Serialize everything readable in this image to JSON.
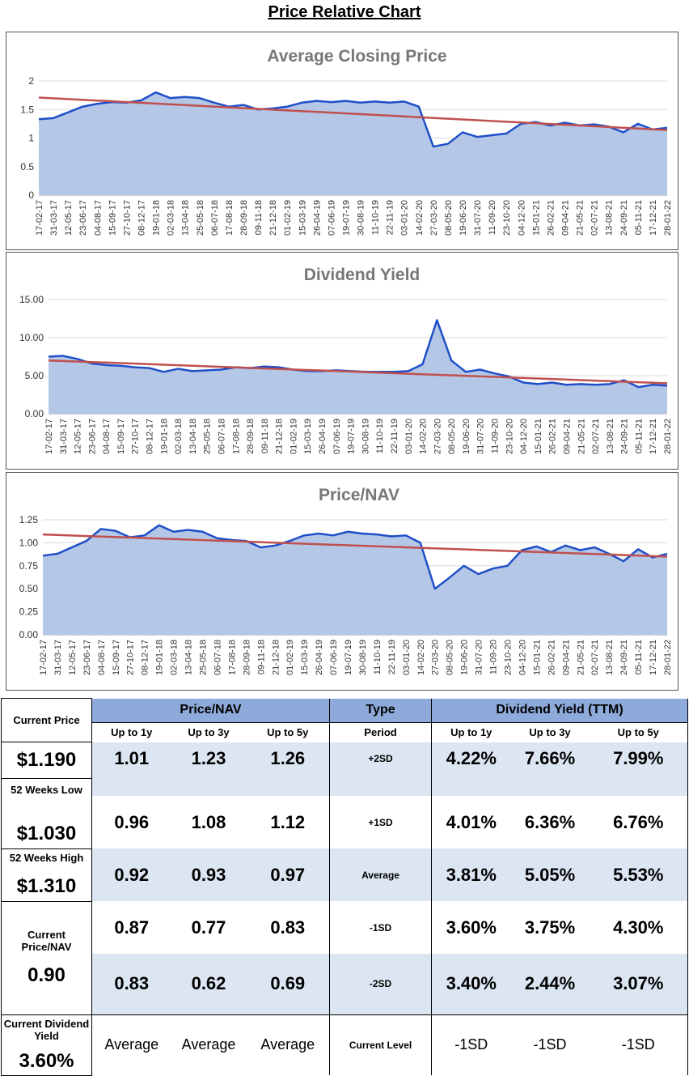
{
  "page_title": "Price Relative Chart",
  "colors": {
    "area_fill": "#b4c7e7",
    "line": "#1f4fc8",
    "trend": "#c0504d",
    "header_fill": "#8eaadb",
    "band_fill": "#dce6f2"
  },
  "chart_data": [
    {
      "type": "area",
      "title": "Average Closing Price",
      "ylim": [
        0,
        2
      ],
      "yticks": [
        "0",
        "0.5",
        "1",
        "1.5",
        "2"
      ],
      "ytick_values": [
        0,
        0.5,
        1,
        1.5,
        2
      ],
      "x_labels": [
        "17-02-17",
        "31-03-17",
        "12-05-17",
        "23-06-17",
        "04-08-17",
        "15-09-17",
        "27-10-17",
        "08-12-17",
        "19-01-18",
        "02-03-18",
        "13-04-18",
        "25-05-18",
        "06-07-18",
        "17-08-18",
        "28-09-18",
        "09-11-18",
        "21-12-18",
        "01-02-19",
        "15-03-19",
        "26-04-19",
        "07-06-19",
        "19-07-19",
        "30-08-19",
        "11-10-19",
        "22-11-19",
        "03-01-20",
        "14-02-20",
        "27-03-20",
        "08-05-20",
        "19-06-20",
        "31-07-20",
        "11-09-20",
        "23-10-20",
        "04-12-20",
        "15-01-21",
        "26-02-21",
        "09-04-21",
        "21-05-21",
        "02-07-21",
        "13-08-21",
        "24-09-21",
        "05-11-21",
        "17-12-21",
        "28-01-22"
      ],
      "points": [
        [
          0,
          1.33
        ],
        [
          1,
          1.35
        ],
        [
          2,
          1.45
        ],
        [
          3,
          1.55
        ],
        [
          4,
          1.6
        ],
        [
          5,
          1.63
        ],
        [
          6,
          1.62
        ],
        [
          7,
          1.66
        ],
        [
          8,
          1.8
        ],
        [
          9,
          1.7
        ],
        [
          10,
          1.72
        ],
        [
          11,
          1.7
        ],
        [
          12,
          1.62
        ],
        [
          13,
          1.55
        ],
        [
          14,
          1.58
        ],
        [
          15,
          1.5
        ],
        [
          16,
          1.52
        ],
        [
          17,
          1.55
        ],
        [
          18,
          1.62
        ],
        [
          19,
          1.65
        ],
        [
          20,
          1.63
        ],
        [
          21,
          1.65
        ],
        [
          22,
          1.62
        ],
        [
          23,
          1.64
        ],
        [
          24,
          1.62
        ],
        [
          25,
          1.64
        ],
        [
          26,
          1.55
        ],
        [
          27,
          0.85
        ],
        [
          28,
          0.9
        ],
        [
          29,
          1.1
        ],
        [
          30,
          1.02
        ],
        [
          31,
          1.05
        ],
        [
          32,
          1.08
        ],
        [
          33,
          1.25
        ],
        [
          34,
          1.28
        ],
        [
          35,
          1.22
        ],
        [
          36,
          1.27
        ],
        [
          37,
          1.22
        ],
        [
          38,
          1.24
        ],
        [
          39,
          1.2
        ],
        [
          40,
          1.1
        ],
        [
          41,
          1.25
        ],
        [
          42,
          1.15
        ],
        [
          43,
          1.18
        ]
      ],
      "trend": [
        1.71,
        1.14
      ]
    },
    {
      "type": "area",
      "title": "Dividend Yield",
      "ylim": [
        0,
        15
      ],
      "yticks": [
        "0.00",
        "5.00",
        "10.00",
        "15.00"
      ],
      "ytick_values": [
        0,
        5,
        10,
        15
      ],
      "x_labels": [
        "17-02-17",
        "31-03-17",
        "12-05-17",
        "23-06-17",
        "04-08-17",
        "15-09-17",
        "27-10-17",
        "08-12-17",
        "19-01-18",
        "02-03-18",
        "13-04-18",
        "25-05-18",
        "06-07-18",
        "17-08-18",
        "28-09-18",
        "09-11-18",
        "21-12-18",
        "01-02-19",
        "15-03-19",
        "26-04-19",
        "07-06-19",
        "19-07-19",
        "30-08-19",
        "11-10-19",
        "22-11-19",
        "03-01-20",
        "14-02-20",
        "27-03-20",
        "08-05-20",
        "19-06-20",
        "31-07-20",
        "11-09-20",
        "23-10-20",
        "04-12-20",
        "15-01-21",
        "26-02-21",
        "09-04-21",
        "21-05-21",
        "02-07-21",
        "13-08-21",
        "24-09-21",
        "05-11-21",
        "17-12-21",
        "28-01-22"
      ],
      "points": [
        [
          0,
          7.5
        ],
        [
          1,
          7.6
        ],
        [
          2,
          7.2
        ],
        [
          3,
          6.6
        ],
        [
          4,
          6.4
        ],
        [
          5,
          6.3
        ],
        [
          6,
          6.1
        ],
        [
          7,
          6.0
        ],
        [
          8,
          5.5
        ],
        [
          9,
          5.9
        ],
        [
          10,
          5.6
        ],
        [
          11,
          5.7
        ],
        [
          12,
          5.8
        ],
        [
          13,
          6.1
        ],
        [
          14,
          6.0
        ],
        [
          15,
          6.2
        ],
        [
          16,
          6.1
        ],
        [
          17,
          5.8
        ],
        [
          18,
          5.6
        ],
        [
          19,
          5.6
        ],
        [
          20,
          5.7
        ],
        [
          21,
          5.6
        ],
        [
          22,
          5.5
        ],
        [
          23,
          5.5
        ],
        [
          24,
          5.5
        ],
        [
          25,
          5.6
        ],
        [
          26,
          6.5
        ],
        [
          27,
          12.3
        ],
        [
          28,
          7.0
        ],
        [
          29,
          5.5
        ],
        [
          30,
          5.8
        ],
        [
          31,
          5.3
        ],
        [
          32,
          4.9
        ],
        [
          33,
          4.1
        ],
        [
          34,
          3.9
        ],
        [
          35,
          4.1
        ],
        [
          36,
          3.8
        ],
        [
          37,
          3.9
        ],
        [
          38,
          3.8
        ],
        [
          39,
          3.9
        ],
        [
          40,
          4.4
        ],
        [
          41,
          3.5
        ],
        [
          42,
          3.8
        ],
        [
          43,
          3.7
        ]
      ],
      "trend": [
        7.0,
        4.0
      ]
    },
    {
      "type": "area",
      "title": "Price/NAV",
      "ylim": [
        0,
        1.25
      ],
      "yticks": [
        "0.00",
        "0.25",
        "0.50",
        "0.75",
        "1.00",
        "1.25"
      ],
      "ytick_values": [
        0,
        0.25,
        0.5,
        0.75,
        1.0,
        1.25
      ],
      "x_labels": [
        "17-02-17",
        "31-03-17",
        "12-05-17",
        "23-06-17",
        "04-08-17",
        "15-09-17",
        "27-10-17",
        "08-12-17",
        "19-01-18",
        "02-03-18",
        "13-04-18",
        "25-05-18",
        "06-07-18",
        "17-08-18",
        "28-09-18",
        "09-11-18",
        "21-12-18",
        "01-02-19",
        "15-03-19",
        "26-04-19",
        "07-06-19",
        "19-07-19",
        "30-08-19",
        "11-10-19",
        "22-11-19",
        "03-01-20",
        "14-02-20",
        "27-03-20",
        "08-05-20",
        "19-06-20",
        "31-07-20",
        "11-09-20",
        "23-10-20",
        "04-12-20",
        "15-01-21",
        "26-02-21",
        "09-04-21",
        "21-05-21",
        "02-07-21",
        "13-08-21",
        "24-09-21",
        "05-11-21",
        "17-12-21",
        "28-01-22"
      ],
      "points": [
        [
          0,
          0.86
        ],
        [
          1,
          0.88
        ],
        [
          2,
          0.95
        ],
        [
          3,
          1.02
        ],
        [
          4,
          1.15
        ],
        [
          5,
          1.13
        ],
        [
          6,
          1.06
        ],
        [
          7,
          1.08
        ],
        [
          8,
          1.19
        ],
        [
          9,
          1.12
        ],
        [
          10,
          1.14
        ],
        [
          11,
          1.12
        ],
        [
          12,
          1.05
        ],
        [
          13,
          1.03
        ],
        [
          14,
          1.02
        ],
        [
          15,
          0.95
        ],
        [
          16,
          0.97
        ],
        [
          17,
          1.02
        ],
        [
          18,
          1.08
        ],
        [
          19,
          1.1
        ],
        [
          20,
          1.08
        ],
        [
          21,
          1.12
        ],
        [
          22,
          1.1
        ],
        [
          23,
          1.09
        ],
        [
          24,
          1.07
        ],
        [
          25,
          1.08
        ],
        [
          26,
          1.0
        ],
        [
          27,
          0.5
        ],
        [
          28,
          0.62
        ],
        [
          29,
          0.75
        ],
        [
          30,
          0.66
        ],
        [
          31,
          0.72
        ],
        [
          32,
          0.75
        ],
        [
          33,
          0.92
        ],
        [
          34,
          0.96
        ],
        [
          35,
          0.9
        ],
        [
          36,
          0.97
        ],
        [
          37,
          0.92
        ],
        [
          38,
          0.95
        ],
        [
          39,
          0.88
        ],
        [
          40,
          0.8
        ],
        [
          41,
          0.93
        ],
        [
          42,
          0.84
        ],
        [
          43,
          0.88
        ]
      ],
      "trend": [
        1.09,
        0.85
      ]
    }
  ],
  "left_panel": [
    {
      "label": "Current Price",
      "value": "$1.190"
    },
    {
      "label": "52 Weeks Low",
      "value": "$1.030"
    },
    {
      "label": "52 Weeks High",
      "value": "$1.310"
    },
    {
      "label": "Current Price/NAV",
      "value": "0.90"
    },
    {
      "label": "Current Dividend Yield",
      "value": "3.60%"
    }
  ],
  "table": {
    "headers": {
      "price_nav": "Price/NAV",
      "type": "Type",
      "dividend_yield": "Dividend Yield (TTM)"
    },
    "subheaders": {
      "c1": "Up to 1y",
      "c2": "Up to 3y",
      "c3": "Up to 5y",
      "period": "Period",
      "d1": "Up to 1y",
      "d2": "Up to 3y",
      "d3": "Up to 5y"
    },
    "rows": [
      {
        "pn": [
          "1.01",
          "1.23",
          "1.26"
        ],
        "period": "+2SD",
        "dy": [
          "4.22%",
          "7.66%",
          "7.99%"
        ]
      },
      {
        "pn": [
          "0.96",
          "1.08",
          "1.12"
        ],
        "period": "+1SD",
        "dy": [
          "4.01%",
          "6.36%",
          "6.76%"
        ]
      },
      {
        "pn": [
          "0.92",
          "0.93",
          "0.97"
        ],
        "period": "Average",
        "dy": [
          "3.81%",
          "5.05%",
          "5.53%"
        ]
      },
      {
        "pn": [
          "0.87",
          "0.77",
          "0.83"
        ],
        "period": "-1SD",
        "dy": [
          "3.60%",
          "3.75%",
          "4.30%"
        ]
      },
      {
        "pn": [
          "0.83",
          "0.62",
          "0.69"
        ],
        "period": "-2SD",
        "dy": [
          "3.40%",
          "2.44%",
          "3.07%"
        ]
      }
    ],
    "footer": {
      "pn": [
        "Average",
        "Average",
        "Average"
      ],
      "period": "Current Level",
      "dy": [
        "-1SD",
        "-1SD",
        "-1SD"
      ]
    }
  }
}
